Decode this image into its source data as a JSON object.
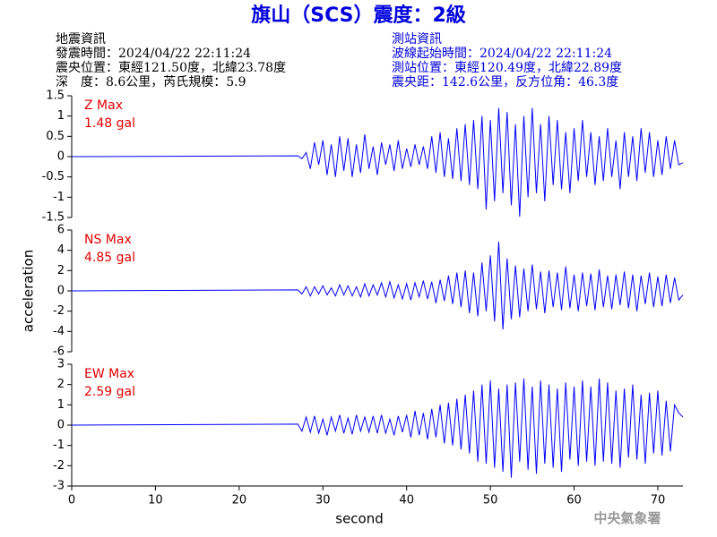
{
  "header": {
    "title": "旗山（SCS）震度：2級",
    "left": [
      "地震資訊",
      "發震時間：2024/04/22 22:11:24",
      "震央位置：東經121.50度，北緯23.78度",
      "深　度：8.6公里，芮氏規模：5.9"
    ],
    "right": [
      "測站資訊",
      "波線起始時間：2024/04/22 22:11:24",
      "測站位置：東經120.49度，北緯22.89度",
      "震央距：142.6公里，反方位角：46.3度"
    ],
    "footer": "中央氣象署"
  },
  "chart_data": [
    {
      "type": "line",
      "annotations": [
        "Z Max",
        "1.48 gal"
      ],
      "annotation_color": "#e00000",
      "color": "#0000ff",
      "xlim": [
        0,
        73
      ],
      "ylim": [
        -1.5,
        1.5
      ],
      "yticks": [
        1.5,
        1,
        0.5,
        0,
        -0.5,
        -1,
        -1.5
      ],
      "x": [
        0,
        27,
        27.5,
        28,
        28.5,
        29,
        29.5,
        30,
        30.5,
        31,
        31.5,
        32,
        32.5,
        33,
        33.5,
        34,
        34.5,
        35,
        35.5,
        36,
        36.5,
        37,
        37.5,
        38,
        38.5,
        39,
        39.5,
        40,
        40.5,
        41,
        41.5,
        42,
        42.5,
        43,
        43.5,
        44,
        44.5,
        45,
        45.5,
        46,
        46.5,
        47,
        47.5,
        48,
        48.5,
        49,
        49.5,
        50,
        50.5,
        51,
        51.5,
        52,
        52.5,
        53,
        53.5,
        54,
        54.5,
        55,
        55.5,
        56,
        56.5,
        57,
        57.5,
        58,
        58.5,
        59,
        59.5,
        60,
        60.5,
        61,
        61.5,
        62,
        62.5,
        63,
        63.5,
        64,
        64.5,
        65,
        65.5,
        66,
        66.5,
        67,
        67.5,
        68,
        68.5,
        69,
        69.5,
        70,
        70.5,
        71,
        71.5,
        72,
        72.5,
        73
      ],
      "values": [
        0,
        0.02,
        -0.05,
        0.1,
        -0.3,
        0.35,
        -0.2,
        0.4,
        -0.45,
        0.3,
        -0.5,
        0.5,
        -0.35,
        0.45,
        -0.5,
        0.3,
        -0.4,
        0.55,
        -0.3,
        0.25,
        -0.45,
        0.35,
        -0.2,
        0.3,
        -0.35,
        0.4,
        -0.3,
        0.2,
        -0.25,
        0.3,
        -0.2,
        0.25,
        -0.3,
        0.5,
        -0.4,
        0.6,
        -0.5,
        0.45,
        -0.55,
        0.7,
        -0.6,
        0.8,
        -0.7,
        0.9,
        -0.8,
        1.0,
        -1.3,
        0.9,
        -1.1,
        1.2,
        -0.9,
        1.1,
        -1.2,
        0.8,
        -1.48,
        1.0,
        -1.0,
        1.2,
        -0.9,
        0.8,
        -1.1,
        1.0,
        -0.7,
        0.9,
        -0.8,
        0.6,
        -0.9,
        0.7,
        -0.6,
        0.9,
        -0.5,
        0.6,
        -0.7,
        0.5,
        -0.6,
        0.7,
        -0.5,
        0.4,
        -0.8,
        0.6,
        -0.5,
        0.5,
        -0.6,
        0.7,
        -0.4,
        0.6,
        -0.5,
        0.4,
        -0.45,
        0.5,
        -0.3,
        0.4,
        -0.2,
        -0.15
      ]
    },
    {
      "type": "line",
      "annotations": [
        "NS Max",
        "4.85 gal"
      ],
      "annotation_color": "#e00000",
      "color": "#0000ff",
      "ylabel": "acceleration",
      "xlim": [
        0,
        73
      ],
      "ylim": [
        -6,
        6
      ],
      "yticks": [
        6,
        4,
        2,
        0,
        -2,
        -4,
        -6
      ],
      "x": [
        0,
        27,
        27.5,
        28,
        28.5,
        29,
        29.5,
        30,
        30.5,
        31,
        31.5,
        32,
        32.5,
        33,
        33.5,
        34,
        34.5,
        35,
        35.5,
        36,
        36.5,
        37,
        37.5,
        38,
        38.5,
        39,
        39.5,
        40,
        40.5,
        41,
        41.5,
        42,
        42.5,
        43,
        43.5,
        44,
        44.5,
        45,
        45.5,
        46,
        46.5,
        47,
        47.5,
        48,
        48.5,
        49,
        49.5,
        50,
        50.5,
        51,
        51.5,
        52,
        52.5,
        53,
        53.5,
        54,
        54.5,
        55,
        55.5,
        56,
        56.5,
        57,
        57.5,
        58,
        58.5,
        59,
        59.5,
        60,
        60.5,
        61,
        61.5,
        62,
        62.5,
        63,
        63.5,
        64,
        64.5,
        65,
        65.5,
        66,
        66.5,
        67,
        67.5,
        68,
        68.5,
        69,
        69.5,
        70,
        70.5,
        71,
        71.5,
        72,
        72.5,
        73
      ],
      "values": [
        0,
        0.1,
        -0.3,
        0.4,
        -0.5,
        0.4,
        -0.3,
        0.5,
        -0.4,
        0.3,
        -0.5,
        0.6,
        -0.4,
        0.5,
        -0.5,
        0.4,
        -0.6,
        0.7,
        -0.5,
        0.6,
        -0.4,
        0.8,
        -0.6,
        0.9,
        -0.7,
        0.6,
        -0.8,
        0.7,
        -0.9,
        0.8,
        -0.6,
        1.0,
        -0.8,
        0.9,
        -1.2,
        1.1,
        -1.0,
        1.5,
        -1.3,
        1.8,
        -1.6,
        2.0,
        -2.2,
        1.8,
        -2.5,
        2.8,
        -2.0,
        3.5,
        -3.0,
        4.85,
        -3.8,
        3.2,
        -2.8,
        2.5,
        -2.6,
        2.2,
        -2.0,
        2.6,
        -1.8,
        1.9,
        -2.2,
        2.0,
        -1.6,
        1.8,
        -1.9,
        2.4,
        -1.7,
        1.6,
        -2.0,
        1.8,
        -1.5,
        1.7,
        -1.9,
        2.1,
        -1.6,
        1.5,
        -1.8,
        1.6,
        -1.4,
        1.9,
        -1.7,
        1.6,
        -2.0,
        1.5,
        -1.3,
        1.8,
        -1.6,
        1.4,
        -1.5,
        1.6,
        -1.2,
        1.3,
        -0.9,
        -0.4
      ]
    },
    {
      "type": "line",
      "annotations": [
        "EW Max",
        "2.59 gal"
      ],
      "annotation_color": "#e00000",
      "color": "#0000ff",
      "xlabel": "second",
      "xlim": [
        0,
        73
      ],
      "xticks": [
        0,
        10,
        20,
        30,
        40,
        50,
        60,
        70
      ],
      "ylim": [
        -3,
        3
      ],
      "yticks": [
        3,
        2,
        1,
        0,
        -1,
        -2,
        -3
      ],
      "x": [
        0,
        27,
        27.5,
        28,
        28.5,
        29,
        29.5,
        30,
        30.5,
        31,
        31.5,
        32,
        32.5,
        33,
        33.5,
        34,
        34.5,
        35,
        35.5,
        36,
        36.5,
        37,
        37.5,
        38,
        38.5,
        39,
        39.5,
        40,
        40.5,
        41,
        41.5,
        42,
        42.5,
        43,
        43.5,
        44,
        44.5,
        45,
        45.5,
        46,
        46.5,
        47,
        47.5,
        48,
        48.5,
        49,
        49.5,
        50,
        50.5,
        51,
        51.5,
        52,
        52.5,
        53,
        53.5,
        54,
        54.5,
        55,
        55.5,
        56,
        56.5,
        57,
        57.5,
        58,
        58.5,
        59,
        59.5,
        60,
        60.5,
        61,
        61.5,
        62,
        62.5,
        63,
        63.5,
        64,
        64.5,
        65,
        65.5,
        66,
        66.5,
        67,
        67.5,
        68,
        68.5,
        69,
        69.5,
        70,
        70.5,
        71,
        71.5,
        72,
        72.5,
        73
      ],
      "values": [
        0,
        0.05,
        -0.3,
        0.4,
        -0.35,
        0.45,
        -0.4,
        0.3,
        -0.5,
        0.4,
        -0.3,
        0.5,
        -0.4,
        0.35,
        -0.45,
        0.5,
        -0.3,
        0.4,
        -0.35,
        0.45,
        -0.4,
        0.5,
        -0.4,
        0.3,
        -0.5,
        0.45,
        -0.35,
        0.5,
        -0.6,
        0.7,
        -0.5,
        0.6,
        -0.7,
        0.8,
        -0.6,
        1.0,
        -0.9,
        1.1,
        -1.0,
        1.3,
        -1.2,
        1.5,
        -1.4,
        1.7,
        -1.8,
        2.0,
        -1.9,
        2.2,
        -2.1,
        1.8,
        -2.3,
        2.0,
        -2.59,
        2.1,
        -1.8,
        2.3,
        -2.2,
        1.9,
        -2.4,
        2.2,
        -1.9,
        2.0,
        -2.1,
        1.8,
        -2.3,
        2.1,
        -1.7,
        1.9,
        -2.0,
        2.2,
        -1.8,
        1.9,
        -2.0,
        2.3,
        -1.8,
        2.1,
        -1.9,
        1.7,
        -2.1,
        1.8,
        -1.6,
        2.0,
        -1.7,
        1.5,
        -1.9,
        1.6,
        -1.4,
        1.7,
        -1.5,
        1.2,
        -1.3,
        1.0,
        0.6,
        0.4
      ]
    }
  ]
}
